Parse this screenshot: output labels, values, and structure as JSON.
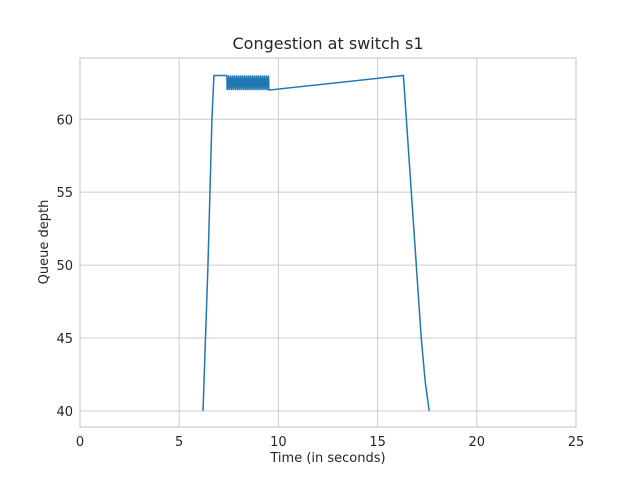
{
  "chart_data": {
    "type": "line",
    "title": "Congestion at switch s1",
    "xlabel": "Time (in seconds)",
    "ylabel": "Queue depth",
    "xlim": [
      0,
      25
    ],
    "ylim": [
      38.9,
      64.2
    ],
    "xticks": [
      0,
      5,
      10,
      15,
      20,
      25
    ],
    "yticks": [
      40,
      45,
      50,
      55,
      60
    ],
    "grid": true,
    "legend": "none",
    "series": [
      {
        "color": "#1f77b4",
        "x": [
          6.2,
          6.25,
          6.35,
          6.45,
          6.55,
          6.65,
          6.75,
          7.4,
          7.42,
          7.5,
          7.52,
          7.6,
          7.62,
          7.7,
          7.72,
          7.8,
          7.82,
          7.9,
          7.92,
          8.0,
          8.02,
          8.1,
          8.12,
          8.2,
          8.22,
          8.3,
          8.32,
          8.4,
          8.42,
          8.5,
          8.52,
          8.6,
          8.62,
          8.7,
          8.72,
          8.8,
          8.82,
          8.9,
          8.92,
          9.0,
          9.02,
          9.1,
          9.12,
          9.2,
          9.22,
          9.3,
          9.32,
          9.4,
          9.42,
          9.5,
          9.52,
          16.3,
          16.4,
          16.6,
          16.8,
          17.0,
          17.2,
          17.4,
          17.6
        ],
        "y": [
          40.0,
          42.0,
          46.0,
          50.0,
          55.0,
          60.0,
          63.0,
          63.0,
          62.0,
          63.0,
          62.0,
          63.0,
          62.0,
          63.0,
          62.0,
          63.0,
          62.0,
          63.0,
          62.0,
          63.0,
          62.0,
          63.0,
          62.0,
          63.0,
          62.0,
          63.0,
          62.0,
          63.0,
          62.0,
          63.0,
          62.0,
          63.0,
          62.0,
          63.0,
          62.0,
          63.0,
          62.0,
          63.0,
          62.0,
          63.0,
          62.0,
          63.0,
          62.0,
          63.0,
          62.0,
          63.0,
          62.0,
          63.0,
          62.0,
          63.0,
          62.0,
          63.0,
          61.0,
          57.0,
          53.0,
          49.0,
          45.0,
          42.0,
          40.0
        ]
      }
    ]
  }
}
